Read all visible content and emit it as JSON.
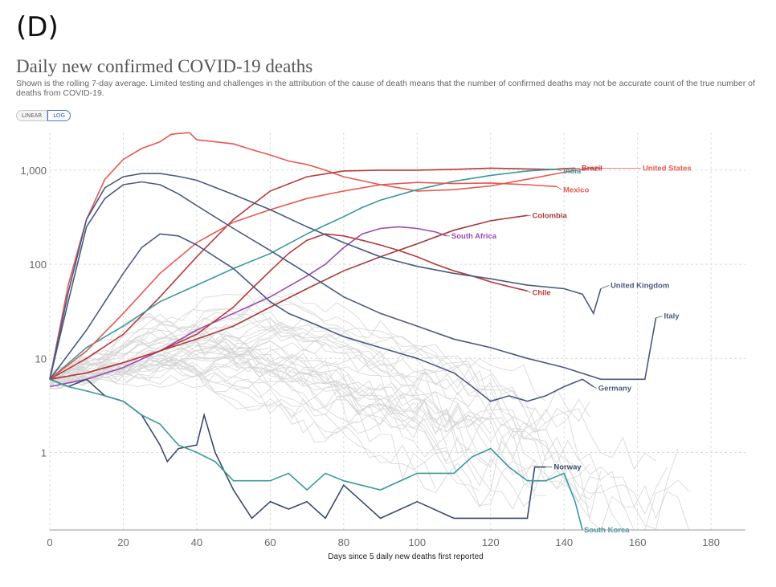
{
  "header": {
    "panel_label": "(D)",
    "title": "Daily new confirmed COVID-19 deaths",
    "subtitle": "Shown is the rolling 7-day average. Limited testing and challenges in the attribution of the cause of death means that the number of confirmed deaths may not be accurate count of the true number of deaths from COVID-19."
  },
  "controls": {
    "linear_label": "LINEAR",
    "log_label": "LOG",
    "active": "LOG"
  },
  "chart_data": {
    "type": "line",
    "title": "Daily new confirmed COVID-19 deaths",
    "xlabel": "Days since 5 daily new deaths first reported",
    "ylabel": "",
    "y_scale": "log",
    "xlim": [
      0,
      185
    ],
    "ylim": [
      0.15,
      2500
    ],
    "x_ticks": [
      0,
      20,
      40,
      60,
      80,
      100,
      120,
      140,
      160,
      180
    ],
    "x_tick_labels": [
      "0",
      "20",
      "40",
      "60",
      "80",
      "100",
      "120",
      "140",
      "160",
      "180"
    ],
    "y_ticks": [
      1,
      10,
      100,
      1000
    ],
    "y_tick_labels": [
      "1",
      "10",
      "100",
      "1,000"
    ],
    "grid": true,
    "series": [
      {
        "name": "United States",
        "color": "#e8584f",
        "x": [
          0,
          5,
          10,
          15,
          20,
          25,
          30,
          33,
          35,
          38,
          40,
          45,
          50,
          55,
          60,
          65,
          70,
          75,
          80,
          90,
          100,
          110,
          120,
          130,
          140,
          147,
          150
        ],
        "y": [
          6,
          60,
          300,
          800,
          1300,
          1700,
          2000,
          2400,
          2450,
          2500,
          2100,
          2000,
          1900,
          1650,
          1450,
          1250,
          1150,
          1000,
          850,
          700,
          600,
          620,
          680,
          800,
          950,
          1050,
          1050
        ]
      },
      {
        "name": "Brazil",
        "color": "#b8393c",
        "x": [
          0,
          10,
          20,
          30,
          40,
          50,
          60,
          70,
          80,
          90,
          100,
          110,
          120,
          130,
          137,
          140,
          143
        ],
        "y": [
          6,
          10,
          18,
          45,
          120,
          300,
          600,
          850,
          980,
          1000,
          1000,
          1020,
          1050,
          1030,
          1020,
          1040,
          1050
        ]
      },
      {
        "name": "India",
        "color": "#3a9a9c",
        "x": [
          0,
          10,
          20,
          30,
          40,
          50,
          60,
          70,
          75,
          80,
          85,
          90,
          100,
          110,
          120,
          130,
          135,
          138
        ],
        "y": [
          6,
          13,
          22,
          40,
          60,
          90,
          130,
          210,
          260,
          320,
          400,
          480,
          620,
          760,
          880,
          980,
          1010,
          1020
        ]
      },
      {
        "name": "Mexico",
        "color": "#e8584f",
        "x": [
          0,
          10,
          20,
          30,
          40,
          50,
          60,
          70,
          80,
          90,
          100,
          110,
          120,
          130,
          135,
          138
        ],
        "y": [
          6,
          12,
          30,
          80,
          170,
          280,
          380,
          500,
          600,
          700,
          740,
          720,
          730,
          700,
          680,
          670
        ]
      },
      {
        "name": "Colombia",
        "color": "#a8393c",
        "x": [
          0,
          10,
          20,
          30,
          40,
          50,
          60,
          70,
          80,
          90,
          100,
          110,
          120,
          125,
          130
        ],
        "y": [
          6,
          7,
          9,
          12,
          16,
          22,
          35,
          55,
          85,
          120,
          165,
          230,
          290,
          310,
          330
        ]
      },
      {
        "name": "South Africa",
        "color": "#9b4cae",
        "x": [
          0,
          10,
          20,
          30,
          40,
          50,
          60,
          70,
          75,
          80,
          85,
          90,
          95,
          100,
          105,
          108
        ],
        "y": [
          5,
          6,
          8,
          12,
          20,
          30,
          45,
          75,
          100,
          150,
          210,
          240,
          250,
          240,
          220,
          200
        ]
      },
      {
        "name": "Chile",
        "color": "#b8393c",
        "x": [
          0,
          10,
          20,
          30,
          40,
          50,
          55,
          60,
          65,
          70,
          75,
          80,
          85,
          90,
          95,
          100,
          105,
          110,
          115,
          120,
          125,
          130
        ],
        "y": [
          6,
          7,
          9,
          12,
          18,
          35,
          55,
          85,
          130,
          180,
          210,
          200,
          180,
          160,
          140,
          120,
          100,
          85,
          75,
          65,
          58,
          52
        ]
      },
      {
        "name": "United Kingdom",
        "color": "#4a5a80",
        "x": [
          0,
          5,
          10,
          15,
          20,
          25,
          30,
          35,
          40,
          50,
          60,
          70,
          80,
          90,
          100,
          110,
          120,
          130,
          140,
          145,
          148,
          150
        ],
        "y": [
          6,
          50,
          300,
          650,
          850,
          920,
          920,
          860,
          780,
          550,
          380,
          250,
          170,
          120,
          95,
          80,
          70,
          60,
          55,
          48,
          30,
          55
        ]
      },
      {
        "name": "Italy",
        "color": "#4a5a80",
        "x": [
          0,
          5,
          10,
          15,
          20,
          25,
          30,
          35,
          40,
          50,
          60,
          70,
          80,
          90,
          100,
          110,
          120,
          130,
          140,
          150,
          155,
          158,
          160,
          162,
          165
        ],
        "y": [
          6,
          40,
          250,
          500,
          700,
          750,
          700,
          560,
          420,
          240,
          140,
          80,
          45,
          30,
          22,
          16,
          13,
          10,
          8,
          6,
          6,
          6,
          6,
          6,
          27
        ]
      },
      {
        "name": "Germany",
        "color": "#4a5a80",
        "x": [
          0,
          10,
          20,
          25,
          30,
          35,
          40,
          50,
          55,
          60,
          65,
          70,
          80,
          90,
          100,
          110,
          115,
          120,
          125,
          130,
          135,
          140,
          145,
          148
        ],
        "y": [
          6,
          20,
          80,
          150,
          210,
          200,
          160,
          90,
          60,
          40,
          30,
          25,
          17,
          13,
          10,
          7,
          5,
          3.5,
          4,
          3.5,
          4,
          5,
          6,
          5
        ]
      },
      {
        "name": "Norway",
        "color": "#3a4a70",
        "x": [
          0,
          5,
          10,
          15,
          20,
          25,
          30,
          32,
          35,
          40,
          42,
          45,
          50,
          55,
          60,
          65,
          70,
          75,
          80,
          85,
          90,
          100,
          110,
          120,
          125,
          130,
          132,
          135
        ],
        "y": [
          6,
          5,
          6,
          4,
          3.5,
          2.5,
          1.2,
          0.8,
          1.1,
          1.2,
          2.5,
          1.0,
          0.4,
          0.2,
          0.3,
          0.25,
          0.3,
          0.2,
          0.45,
          0.3,
          0.2,
          0.3,
          0.2,
          0.2,
          0.2,
          0.2,
          0.7,
          0.7
        ]
      },
      {
        "name": "South Korea",
        "color": "#3a9a9c",
        "x": [
          0,
          5,
          10,
          15,
          20,
          25,
          30,
          35,
          40,
          45,
          50,
          55,
          60,
          65,
          70,
          75,
          80,
          90,
          100,
          110,
          115,
          120,
          125,
          130,
          135,
          140,
          143,
          145
        ],
        "y": [
          6,
          5,
          4.5,
          4,
          3.5,
          2.5,
          2,
          1.2,
          1,
          0.8,
          0.5,
          0.5,
          0.5,
          0.6,
          0.4,
          0.6,
          0.5,
          0.4,
          0.6,
          0.6,
          0.9,
          1.1,
          0.7,
          0.5,
          0.5,
          0.6,
          0.3,
          0.15
        ]
      }
    ]
  }
}
